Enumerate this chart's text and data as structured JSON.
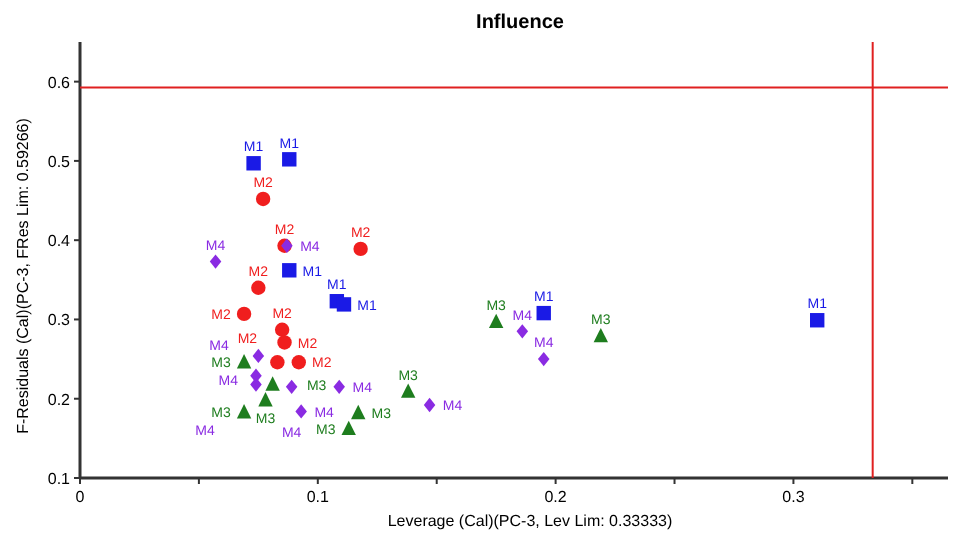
{
  "chart_data": {
    "type": "scatter",
    "title": "Influence",
    "xlabel": "Leverage (Cal)(PC-3, Lev Lim: 0.33333)",
    "ylabel": "F-Residuals (Cal)(PC-3, FRes Lim: 0.59266)",
    "xlim": [
      0,
      0.365
    ],
    "xticks": [
      0,
      {
        "value": 0.05,
        "label": null
      },
      0.1,
      {
        "value": 0.15,
        "label": null
      },
      0.2,
      {
        "value": 0.25,
        "label": null
      },
      0.3,
      {
        "value": 0.35,
        "label": null
      }
    ],
    "ylim": [
      0.1,
      0.65
    ],
    "yticks": [
      0.1,
      0.2,
      0.3,
      0.4,
      0.5,
      0.6
    ],
    "grid": false,
    "legend": false,
    "ref_lines": [
      {
        "axis": "y",
        "value": 0.59266,
        "color": "#e02020"
      },
      {
        "axis": "x",
        "value": 0.33333,
        "color": "#e02020"
      }
    ],
    "series": [
      {
        "name": "M1",
        "color": "#1a1ae6",
        "marker": "square",
        "x": [
          0.073,
          0.088,
          0.088,
          0.108,
          0.111,
          0.31,
          0.195
        ],
        "values": [
          0.497,
          0.502,
          0.362,
          0.323,
          0.319,
          0.299,
          0.308
        ]
      },
      {
        "name": "M2",
        "color": "#f01e1e",
        "marker": "circle",
        "x": [
          0.077,
          0.118,
          0.086,
          0.075,
          0.069,
          0.085,
          0.086,
          0.083,
          0.092
        ],
        "values": [
          0.452,
          0.389,
          0.393,
          0.34,
          0.307,
          0.287,
          0.271,
          0.246,
          0.246
        ]
      },
      {
        "name": "M3",
        "color": "#1e7d1e",
        "marker": "triangle",
        "x": [
          0.069,
          0.069,
          0.078,
          0.081,
          0.113,
          0.117,
          0.138,
          0.175,
          0.219
        ],
        "values": [
          0.246,
          0.183,
          0.198,
          0.218,
          0.162,
          0.182,
          0.209,
          0.297,
          0.279
        ]
      },
      {
        "name": "M4",
        "color": "#8a2be2",
        "marker": "diamond",
        "x": [
          0.057,
          0.087,
          0.075,
          0.074,
          0.074,
          0.089,
          0.093,
          0.109,
          0.147,
          0.186,
          0.195
        ],
        "values": [
          0.373,
          0.393,
          0.254,
          0.229,
          0.218,
          0.215,
          0.184,
          0.215,
          0.192,
          0.285,
          0.25
        ]
      }
    ]
  }
}
